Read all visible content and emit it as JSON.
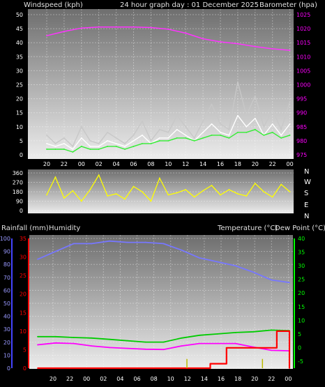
{
  "header": {
    "windspeed_label": "Windspeed (kph)",
    "title": "24 hour graph day : 01 December 2025",
    "barometer_label": "Barometer (hpa)"
  },
  "lower_header": {
    "rain_label": "Rainfall (mm)",
    "humidity_label": "Humidity",
    "temperature_label": "Temperature (°C)",
    "dewpoint_label": "Dew Point (°C)"
  },
  "direction_labels": [
    "N",
    "W",
    "S",
    "E",
    "N"
  ],
  "colors": {
    "wind": "#ffffff",
    "gust": "#c8c8c8",
    "wind_avg": "#33ee33",
    "barometer": "#ff33ff",
    "direction": "#ffff00",
    "temperature": "#00cc00",
    "dewpoint": "#ff00ff",
    "humidity": "#7777ff",
    "rainfall": "#ff0000",
    "rain_rate": "#bbbb00",
    "humidity_axis": "#4444ff",
    "rain_axis": "#ff0000",
    "temp_axis": "#00ff00",
    "baro_axis": "#ff00ff"
  },
  "chart_data": [
    {
      "type": "line",
      "x_ticks": [
        "20",
        "22",
        "00",
        "02",
        "04",
        "06",
        "08",
        "10",
        "12",
        "14",
        "16",
        "18",
        "20",
        "22",
        "00"
      ],
      "y_left": {
        "label": "Windspeed (kph)",
        "ylim": [
          0,
          50
        ],
        "ticks": [
          "0",
          "5",
          "10",
          "15",
          "20",
          "25",
          "30",
          "35",
          "40",
          "45",
          "50"
        ]
      },
      "y_right": {
        "label": "Barometer (hpa)",
        "ylim": [
          975,
          1025
        ],
        "ticks": [
          "975",
          "980",
          "985",
          "990",
          "995",
          "1000",
          "1005",
          "1010",
          "1015",
          "1020",
          "1025"
        ]
      },
      "grid": true,
      "series": [
        {
          "key": "barometer",
          "axis": "right",
          "x": [
            0,
            1,
            2,
            3,
            4,
            5,
            6,
            7,
            8,
            9,
            10,
            11,
            12,
            13,
            14
          ],
          "values": [
            1017.5,
            1019,
            1020.2,
            1020.6,
            1020.6,
            1020.6,
            1020.4,
            1019.8,
            1018.4,
            1016.4,
            1015.3,
            1014.6,
            1013.6,
            1012.8,
            1012.3
          ]
        },
        {
          "key": "gust",
          "axis": "left",
          "x": [
            0,
            0.5,
            1,
            1.5,
            2,
            2.5,
            3,
            3.5,
            4,
            4.5,
            5,
            5.5,
            6,
            6.5,
            7,
            7.5,
            8,
            8.5,
            9,
            9.5,
            10,
            10.5,
            11,
            11.5,
            12,
            12.5,
            13,
            13.5,
            14
          ],
          "values": [
            7,
            4,
            6,
            3,
            10,
            5,
            4,
            8,
            6,
            4,
            7,
            12,
            5,
            9,
            8,
            14,
            10,
            6,
            12,
            18,
            11,
            9,
            26,
            14,
            21,
            10,
            16,
            9,
            19
          ]
        },
        {
          "key": "wind",
          "axis": "left",
          "x": [
            0,
            0.5,
            1,
            1.5,
            2,
            2.5,
            3,
            3.5,
            4,
            4.5,
            5,
            5.5,
            6,
            6.5,
            7,
            7.5,
            8,
            8.5,
            9,
            9.5,
            10,
            10.5,
            11,
            11.5,
            12,
            12.5,
            13,
            13.5,
            14
          ],
          "values": [
            4,
            3,
            4,
            2,
            6,
            3,
            3,
            5,
            4,
            3,
            5,
            7,
            4,
            6,
            6,
            9,
            7,
            5,
            8,
            11,
            8,
            7,
            14,
            10,
            13,
            7,
            11,
            7,
            11
          ]
        },
        {
          "key": "wind_avg",
          "axis": "left",
          "x": [
            0,
            0.5,
            1,
            1.5,
            2,
            2.5,
            3,
            3.5,
            4,
            4.5,
            5,
            5.5,
            6,
            6.5,
            7,
            7.5,
            8,
            8.5,
            9,
            9.5,
            10,
            10.5,
            11,
            11.5,
            12,
            12.5,
            13,
            13.5,
            14
          ],
          "values": [
            2,
            2,
            2,
            1,
            3,
            2,
            2,
            3,
            3,
            2,
            3,
            4,
            4,
            5,
            5,
            6,
            6,
            5,
            6,
            7,
            7,
            6,
            8,
            8,
            9,
            7,
            8,
            6,
            7
          ]
        }
      ]
    },
    {
      "type": "line",
      "y_left": {
        "ticks": [
          "360",
          "270",
          "180",
          "90",
          "0"
        ],
        "ylim": [
          0,
          360
        ]
      },
      "series": [
        {
          "key": "direction",
          "x": [
            0,
            0.5,
            1,
            1.5,
            2,
            2.5,
            3,
            3.5,
            4,
            4.5,
            5,
            5.5,
            6,
            6.5,
            7,
            7.5,
            8,
            8.5,
            9,
            9.5,
            10,
            10.5,
            11,
            11.5,
            12,
            12.5,
            13,
            13.5,
            14
          ],
          "values": [
            150,
            320,
            120,
            190,
            90,
            200,
            340,
            140,
            160,
            110,
            230,
            180,
            90,
            310,
            150,
            170,
            200,
            130,
            190,
            240,
            150,
            200,
            160,
            140,
            260,
            180,
            130,
            250,
            180
          ]
        }
      ]
    },
    {
      "type": "line",
      "x_ticks": [
        "20",
        "22",
        "00",
        "02",
        "04",
        "06",
        "08",
        "10",
        "12",
        "14",
        "16",
        "18",
        "20",
        "22",
        "00"
      ],
      "y_humidity": {
        "label": "Humidity",
        "ylim": [
          0,
          100
        ],
        "ticks": [
          "0",
          "10",
          "20",
          "30",
          "40",
          "50",
          "60",
          "70",
          "80",
          "90",
          "100"
        ]
      },
      "y_rain": {
        "label": "Rainfall (mm)",
        "ylim": [
          0,
          35
        ],
        "ticks": [
          "0",
          "5",
          "10",
          "15",
          "20",
          "25",
          "30",
          "35"
        ]
      },
      "y_temp": {
        "label": "Temperature (°C)",
        "ylim": [
          -5,
          40
        ],
        "ticks": [
          "-5",
          "0",
          "5",
          "10",
          "15",
          "20",
          "25",
          "30",
          "35",
          "40"
        ]
      },
      "grid": true,
      "series": [
        {
          "key": "humidity",
          "axis": "humidity",
          "x": [
            0,
            1,
            2,
            3,
            4,
            5,
            6,
            7,
            8,
            9,
            10,
            11,
            12,
            13,
            14
          ],
          "values": [
            84,
            90,
            96,
            96,
            98,
            97,
            97,
            96,
            91,
            85,
            82,
            79,
            74,
            68,
            66
          ]
        },
        {
          "key": "temperature",
          "axis": "temp",
          "x": [
            0,
            1,
            2,
            3,
            4,
            5,
            6,
            7,
            8,
            9,
            10,
            11,
            12,
            13,
            14
          ],
          "values": [
            4,
            4,
            3.7,
            3.5,
            3,
            2.5,
            2,
            2,
            3.5,
            4.5,
            5,
            5.5,
            5.8,
            6.4,
            6.2
          ]
        },
        {
          "key": "dewpoint",
          "axis": "temp",
          "x": [
            0,
            1,
            2,
            3,
            4,
            5,
            6,
            7,
            8,
            9,
            10,
            11,
            12,
            13,
            14
          ],
          "values": [
            1,
            1.7,
            1.5,
            0.6,
            0,
            -0.3,
            -0.6,
            -0.7,
            0.6,
            1.5,
            1.5,
            1.5,
            0.2,
            -1,
            -1.2
          ]
        },
        {
          "key": "rainfall",
          "axis": "rain",
          "x": [
            0,
            9.6,
            9.6,
            10.5,
            10.5,
            13.3,
            13.3,
            14,
            14
          ],
          "values": [
            0,
            0,
            1.2,
            1.2,
            5.5,
            5.5,
            10,
            10,
            0
          ]
        },
        {
          "key": "rain_rate",
          "axis": "rain",
          "x": [
            8.3,
            8.3,
            12.5,
            12.5
          ],
          "values": [
            0,
            2.5,
            0,
            2.5
          ]
        }
      ]
    }
  ]
}
